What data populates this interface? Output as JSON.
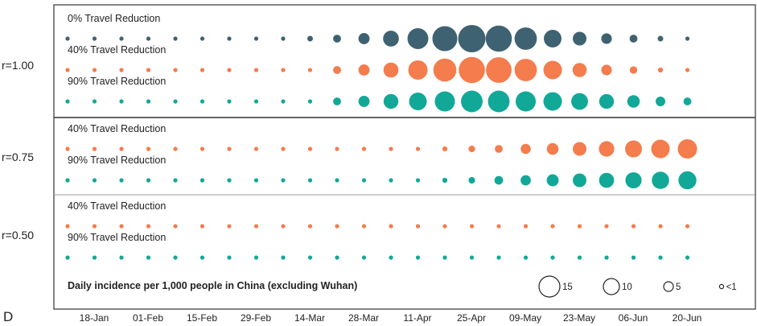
{
  "chart_data": {
    "type": "bubble-matrix",
    "panel_letter": "D",
    "x_tick_labels": [
      "18-Jan",
      "01-Feb",
      "15-Feb",
      "29-Feb",
      "14-Mar",
      "28-Mar",
      "11-Apr",
      "25-Apr",
      "09-May",
      "23-May",
      "06-Jun",
      "20-Jun"
    ],
    "groups": [
      {
        "label": "r=1.00",
        "rows": [
          {
            "name": "0% Travel Reduction",
            "color": "#3f6272",
            "values": [
              0.3,
              0.3,
              0.3,
              0.3,
              0.3,
              0.3,
              0.3,
              0.3,
              0.3,
              0.5,
              1,
              2,
              4,
              7,
              10,
              12,
              11,
              8,
              5,
              3,
              1.8,
              1,
              0.5,
              0.3
            ]
          },
          {
            "name": "40% Travel Reduction",
            "color": "#f47c4d",
            "values": [
              0.3,
              0.3,
              0.3,
              0.3,
              0.3,
              0.3,
              0.3,
              0.3,
              0.3,
              0.3,
              1,
              2,
              3.6,
              6,
              8.5,
              11,
              10.5,
              8,
              5.5,
              3.2,
              1.8,
              0.9,
              0.4,
              0.3
            ]
          },
          {
            "name": "90% Travel Reduction",
            "color": "#11a898",
            "values": [
              0.3,
              0.3,
              0.3,
              0.3,
              0.3,
              0.3,
              0.3,
              0.3,
              0.3,
              0.3,
              1,
              2,
              3.5,
              5,
              6.5,
              7.5,
              7.5,
              6.5,
              5.5,
              4.5,
              3.5,
              2.5,
              1.5,
              1
            ]
          }
        ]
      },
      {
        "label": "r=0.75",
        "rows": [
          {
            "name": "40% Travel Reduction",
            "color": "#f47c4d",
            "values": [
              0.3,
              0.3,
              0.3,
              0.3,
              0.3,
              0.3,
              0.3,
              0.3,
              0.3,
              0.3,
              0.3,
              0.3,
              0.3,
              0.3,
              0.4,
              0.7,
              1,
              1.6,
              2.2,
              3,
              3.8,
              4.6,
              5.5,
              6
            ]
          },
          {
            "name": "90% Travel Reduction",
            "color": "#11a898",
            "values": [
              0.3,
              0.3,
              0.3,
              0.3,
              0.3,
              0.3,
              0.3,
              0.3,
              0.3,
              0.3,
              0.3,
              0.3,
              0.3,
              0.3,
              0.4,
              0.7,
              1.2,
              1.7,
              2.3,
              3,
              3.6,
              4.2,
              4.8,
              5.2
            ]
          }
        ]
      },
      {
        "label": "r=0.50",
        "rows": [
          {
            "name": "40% Travel Reduction",
            "color": "#f47c4d",
            "values": [
              0.3,
              0.3,
              0.3,
              0.3,
              0.3,
              0.3,
              0.3,
              0.3,
              0.3,
              0.3,
              0.3,
              0.3,
              0.3,
              0.3,
              0.3,
              0.3,
              0.3,
              0.3,
              0.3,
              0.3,
              0.3,
              0.3,
              0.3,
              0.3
            ]
          },
          {
            "name": "90% Travel Reduction",
            "color": "#11a898",
            "values": [
              0.3,
              0.3,
              0.3,
              0.3,
              0.3,
              0.3,
              0.3,
              0.3,
              0.3,
              0.3,
              0.3,
              0.3,
              0.3,
              0.3,
              0.3,
              0.3,
              0.3,
              0.3,
              0.3,
              0.3,
              0.3,
              0.3,
              0.3,
              0.3
            ]
          }
        ]
      }
    ],
    "legend": {
      "title": "Daily incidence per 1,000 people in China (excluding Wuhan)",
      "entries": [
        {
          "value": 15,
          "label": "15"
        },
        {
          "value": 10,
          "label": "10"
        },
        {
          "value": 5,
          "label": "5"
        },
        {
          "value": 1,
          "label": "<1"
        }
      ]
    }
  }
}
